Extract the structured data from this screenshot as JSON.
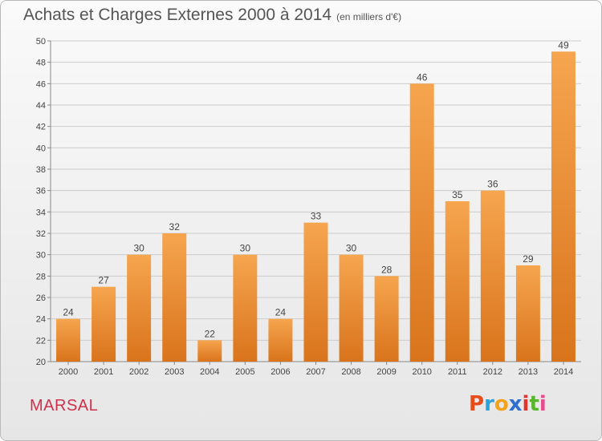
{
  "header": {
    "title": "Achats et Charges Externes 2000 à 2014",
    "unit": "(en milliers d'€)"
  },
  "footer": {
    "place": "MARSAL",
    "brand": "Proxiti"
  },
  "colors": {
    "bar_light": "#f6a54f",
    "bar_dark": "#d9741c",
    "title": "#555555",
    "place": "#d1314b",
    "grid": "#cccccc"
  },
  "chart_data": {
    "type": "bar",
    "title": "Achats et Charges Externes 2000 à 2014",
    "subtitle": "(en milliers d'€)",
    "categories": [
      "2000",
      "2001",
      "2002",
      "2003",
      "2004",
      "2005",
      "2006",
      "2007",
      "2008",
      "2009",
      "2010",
      "2011",
      "2012",
      "2013",
      "2014"
    ],
    "values": [
      24,
      27,
      30,
      32,
      22,
      30,
      24,
      33,
      30,
      28,
      46,
      35,
      36,
      29,
      49
    ],
    "ylim": [
      20,
      50
    ],
    "yticks": [
      20,
      22,
      24,
      26,
      28,
      30,
      32,
      34,
      36,
      38,
      40,
      42,
      44,
      46,
      48,
      50
    ],
    "grid": "horizontal",
    "data_labels": true,
    "xlabel": "",
    "ylabel": ""
  }
}
